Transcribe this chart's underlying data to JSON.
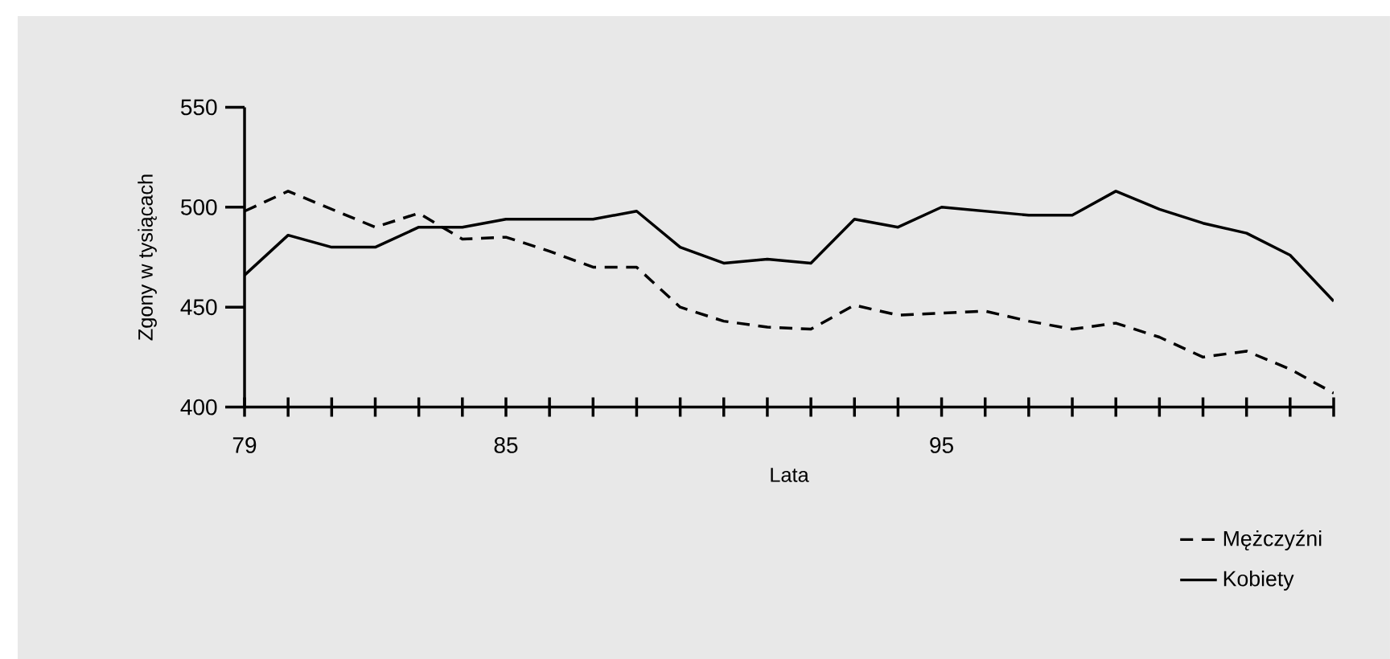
{
  "chart_data": {
    "type": "line",
    "xlabel": "Lata",
    "ylabel": "Zgony w tysiącach",
    "x": [
      79,
      80,
      81,
      82,
      83,
      84,
      85,
      86,
      87,
      88,
      89,
      90,
      91,
      92,
      93,
      94,
      95,
      96,
      97,
      98,
      99,
      100,
      101,
      102,
      103,
      104
    ],
    "series": [
      {
        "name": "Mężczyźni",
        "color": "#000000",
        "line_style": "dashed",
        "values": [
          498,
          508,
          499,
          490,
          497,
          484,
          485,
          478,
          470,
          470,
          450,
          443,
          440,
          439,
          451,
          446,
          447,
          448,
          443,
          439,
          442,
          435,
          425,
          428,
          419,
          407
        ]
      },
      {
        "name": "Kobiety",
        "color": "#000000",
        "line_style": "solid",
        "values": [
          466,
          486,
          480,
          480,
          490,
          490,
          494,
          494,
          494,
          498,
          480,
          472,
          474,
          472,
          494,
          490,
          500,
          498,
          496,
          496,
          508,
          499,
          492,
          487,
          476,
          453
        ]
      }
    ],
    "xlim": [
      79,
      104
    ],
    "xticks": [
      79,
      {
        "value": 80,
        "label": null
      },
      {
        "value": 81,
        "label": null
      },
      {
        "value": 82,
        "label": null
      },
      {
        "value": 83,
        "label": null
      },
      {
        "value": 84,
        "label": null
      },
      {
        "value": 85,
        "label": "85"
      },
      {
        "value": 86,
        "label": null
      },
      {
        "value": 87,
        "label": null
      },
      {
        "value": 88,
        "label": null
      },
      {
        "value": 89,
        "label": null
      },
      {
        "value": 90,
        "label": null
      },
      {
        "value": 91,
        "label": null
      },
      {
        "value": 92,
        "label": null
      },
      {
        "value": 93,
        "label": null
      },
      {
        "value": 94,
        "label": null
      },
      {
        "value": 95,
        "label": "95"
      },
      {
        "value": 96,
        "label": null
      },
      {
        "value": 97,
        "label": null
      },
      {
        "value": 98,
        "label": null
      },
      {
        "value": 99,
        "label": null
      },
      {
        "value": 100,
        "label": null
      },
      {
        "value": 101,
        "label": null
      },
      {
        "value": 102,
        "label": null
      },
      {
        "value": 103,
        "label": null
      },
      {
        "value": 104,
        "label": null
      }
    ],
    "ylim": [
      400,
      550
    ],
    "yticks": [
      400,
      450,
      500,
      550
    ],
    "grid": false,
    "legend": "bottom right"
  }
}
